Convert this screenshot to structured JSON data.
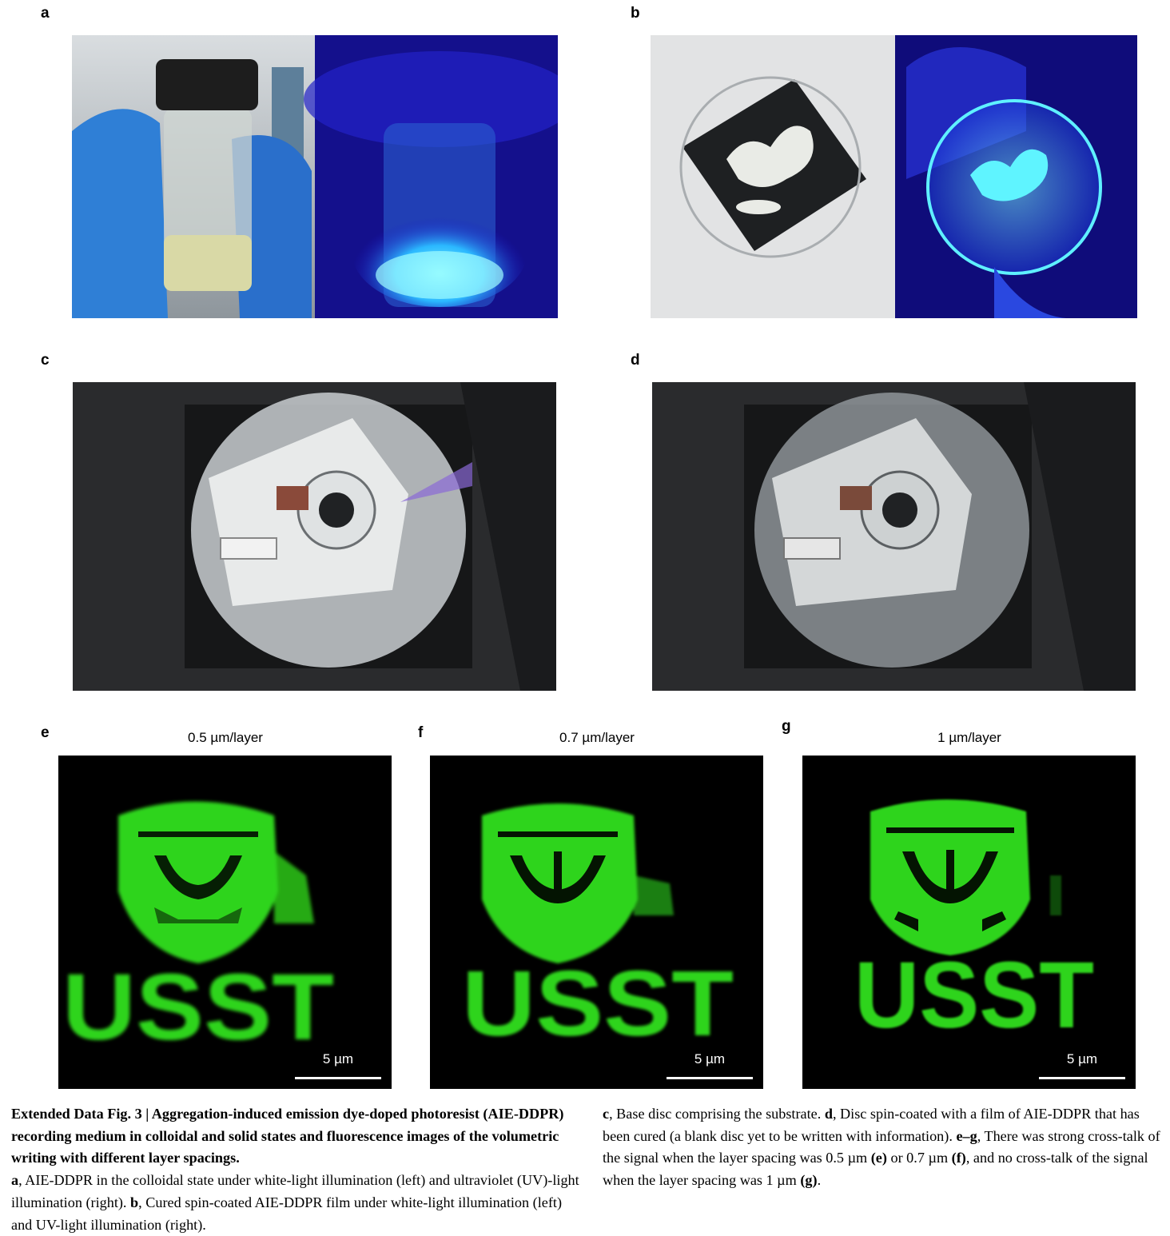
{
  "panels": {
    "a": {
      "label": "a"
    },
    "b": {
      "label": "b"
    },
    "c": {
      "label": "c"
    },
    "d": {
      "label": "d"
    },
    "e": {
      "label": "e",
      "subtitle": "0.5 µm/layer",
      "scale": "5 µm"
    },
    "f": {
      "label": "f",
      "subtitle": "0.7 µm/layer",
      "scale": "5 µm"
    },
    "g": {
      "label": "g",
      "subtitle": "1 µm/layer",
      "scale": "5 µm"
    }
  },
  "micro_text": "USST",
  "colors": {
    "fluorescence_green": "#2fd41a",
    "uv_blue": "#1a14c8",
    "cyan_glow": "#4ff0ff"
  },
  "caption": {
    "title": "Extended Data Fig. 3 | Aggregation-induced emission dye-doped photoresist (AIE-DDPR) recording medium in colloidal and solid states and fluorescence images of the volumetric writing with different layer spacings.",
    "a_label": "a",
    "a_text": ", AIE-DDPR in the colloidal state under white-light illumination (left) and ultraviolet (UV)-light illumination (right). ",
    "b_label": "b",
    "b_text": ", Cured spin-coated AIE-DDPR film under white-light illumination (left) and UV-light illumination (right). ",
    "c_label": "c",
    "c_text": ", Base disc comprising the substrate. ",
    "d_label": "d",
    "d_text": ", Disc spin-coated with a film of AIE-DDPR that has been cured (a blank disc yet to be written with information). ",
    "eg_label": "e–g",
    "eg_text1": ", There was strong cross-talk of the signal when the layer spacing was 0.5 µm ",
    "e_ref": "(e)",
    "eg_text2": " or 0.7 µm ",
    "f_ref": "(f)",
    "eg_text3": ", and no cross-talk of the signal when the layer spacing was 1 µm ",
    "g_ref": "(g)",
    "eg_text4": "."
  }
}
